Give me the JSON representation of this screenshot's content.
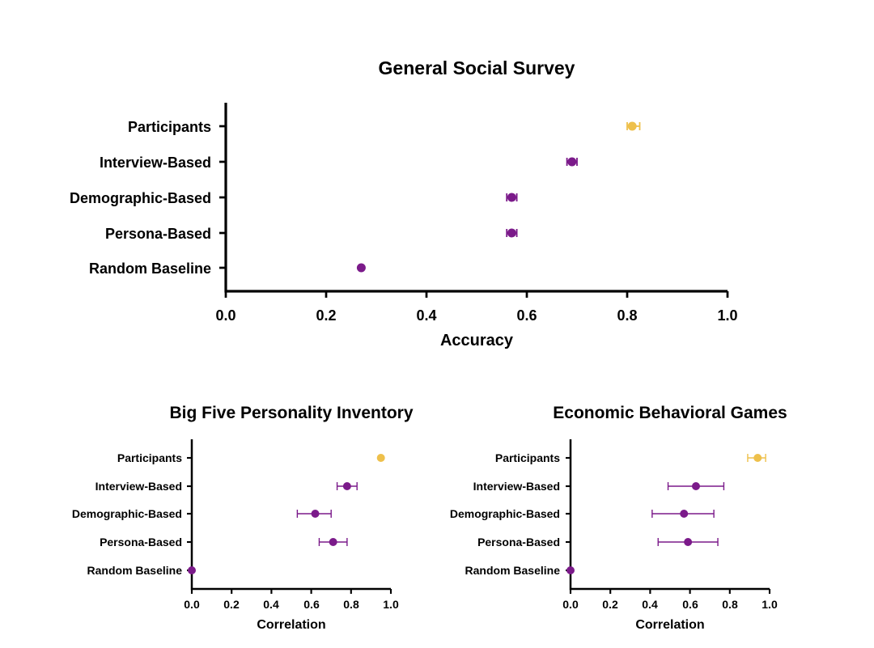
{
  "colors": {
    "participants": "#EEC04B",
    "model": "#7B1A8A",
    "axis": "#000000"
  },
  "chart_data": [
    {
      "type": "scatter",
      "title": "General Social Survey",
      "xlabel": "Accuracy",
      "xlim": [
        0,
        1
      ],
      "xticks": [
        "0.0",
        "0.2",
        "0.4",
        "0.6",
        "0.8",
        "1.0"
      ],
      "categories": [
        "Participants",
        "Interview-Based",
        "Demographic-Based",
        "Persona-Based",
        "Random Baseline"
      ],
      "values": [
        0.81,
        0.69,
        0.57,
        0.57,
        0.27
      ],
      "error_low": [
        0.8,
        0.68,
        0.56,
        0.56,
        0.27
      ],
      "error_high": [
        0.825,
        0.7,
        0.58,
        0.58,
        0.27
      ],
      "point_colors": [
        "participants",
        "model",
        "model",
        "model",
        "model"
      ]
    },
    {
      "type": "scatter",
      "title": "Big Five Personality Inventory",
      "xlabel": "Correlation",
      "xlim": [
        0,
        1
      ],
      "xticks": [
        "0.0",
        "0.2",
        "0.4",
        "0.6",
        "0.8",
        "1.0"
      ],
      "categories": [
        "Participants",
        "Interview-Based",
        "Demographic-Based",
        "Persona-Based",
        "Random Baseline"
      ],
      "values": [
        0.95,
        0.78,
        0.62,
        0.71,
        0.0
      ],
      "error_low": [
        0.95,
        0.73,
        0.53,
        0.64,
        0.0
      ],
      "error_high": [
        0.95,
        0.83,
        0.7,
        0.78,
        0.0
      ],
      "point_colors": [
        "participants",
        "model",
        "model",
        "model",
        "model"
      ]
    },
    {
      "type": "scatter",
      "title": "Economic Behavioral Games",
      "xlabel": "Correlation",
      "xlim": [
        0,
        1
      ],
      "xticks": [
        "0.0",
        "0.2",
        "0.4",
        "0.6",
        "0.8",
        "1.0"
      ],
      "categories": [
        "Participants",
        "Interview-Based",
        "Demographic-Based",
        "Persona-Based",
        "Random Baseline"
      ],
      "values": [
        0.94,
        0.63,
        0.57,
        0.59,
        0.0
      ],
      "error_low": [
        0.89,
        0.49,
        0.41,
        0.44,
        0.0
      ],
      "error_high": [
        0.98,
        0.77,
        0.72,
        0.74,
        0.0
      ],
      "point_colors": [
        "participants",
        "model",
        "model",
        "model",
        "model"
      ]
    }
  ]
}
